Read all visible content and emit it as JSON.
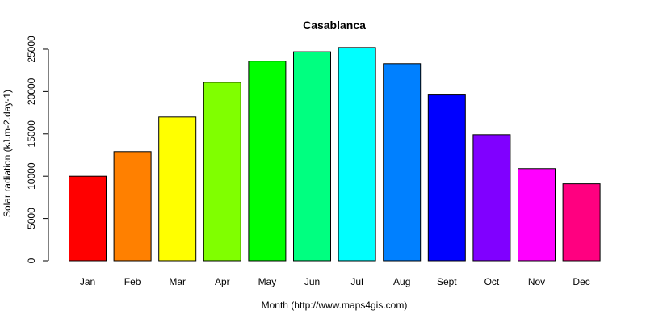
{
  "chart_data": {
    "type": "bar",
    "title": "Casablanca",
    "x_label": "Month (http://www.maps4gis.com)",
    "y_label": "Solar radiation (kJ.m-2.day-1)",
    "categories": [
      "Jan",
      "Feb",
      "Mar",
      "Apr",
      "May",
      "Jun",
      "Jul",
      "Aug",
      "Sept",
      "Oct",
      "Nov",
      "Dec"
    ],
    "values": [
      10000,
      12900,
      17000,
      21100,
      23600,
      24700,
      25200,
      23300,
      19600,
      14900,
      10900,
      9100
    ],
    "colors": [
      "#FF0000",
      "#FF8000",
      "#FFFF00",
      "#80FF00",
      "#00FF00",
      "#00FF80",
      "#00FFFF",
      "#0080FF",
      "#0000FF",
      "#8000FF",
      "#FF00FF",
      "#FF0080"
    ],
    "ylim": [
      0,
      26200
    ],
    "yticks": [
      0,
      5000,
      10000,
      15000,
      20000,
      25000
    ],
    "grid": false
  }
}
